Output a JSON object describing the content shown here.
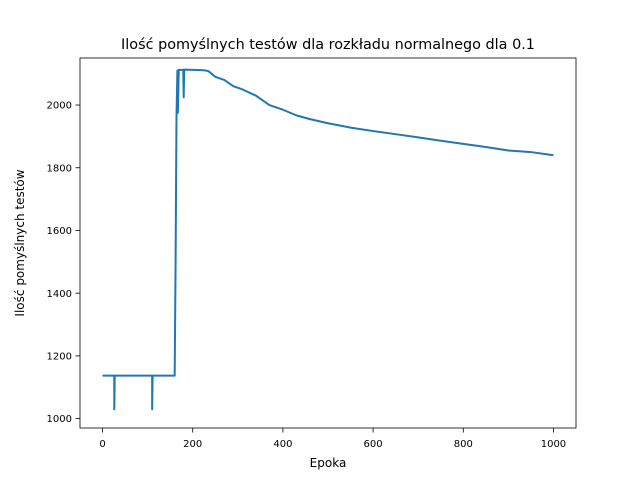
{
  "chart_data": {
    "type": "line",
    "title": "Ilość pomyślnych testów dla rozkładu normalnego dla 0.1",
    "xlabel": "Epoka",
    "ylabel": "Ilość pomyślnych testów",
    "xlim": [
      -50,
      1050
    ],
    "ylim": [
      970,
      2150
    ],
    "x_ticks": [
      0,
      200,
      400,
      600,
      800,
      1000
    ],
    "x_tick_labels": [
      "0",
      "200",
      "400",
      "600",
      "800",
      "1000"
    ],
    "y_ticks": [
      1000,
      1200,
      1400,
      1600,
      1800,
      2000
    ],
    "y_tick_labels": [
      "1000",
      "1200",
      "1400",
      "1600",
      "1800",
      "2000"
    ],
    "grid": false,
    "legend": false,
    "series": [
      {
        "color": "#1f77b4",
        "points": [
          [
            0,
            1137
          ],
          [
            26,
            1137
          ],
          [
            26,
            1030
          ],
          [
            27,
            1137
          ],
          [
            110,
            1137
          ],
          [
            110,
            1030
          ],
          [
            111,
            1137
          ],
          [
            160,
            1137
          ],
          [
            162,
            1500
          ],
          [
            164,
            1960
          ],
          [
            166,
            2110
          ],
          [
            167,
            1975
          ],
          [
            169,
            2112
          ],
          [
            179,
            2112
          ],
          [
            180,
            2025
          ],
          [
            181,
            2113
          ],
          [
            200,
            2112
          ],
          [
            225,
            2111
          ],
          [
            235,
            2108
          ],
          [
            250,
            2090
          ],
          [
            270,
            2080
          ],
          [
            290,
            2060
          ],
          [
            310,
            2050
          ],
          [
            340,
            2030
          ],
          [
            370,
            2000
          ],
          [
            400,
            1985
          ],
          [
            430,
            1967
          ],
          [
            460,
            1955
          ],
          [
            500,
            1942
          ],
          [
            550,
            1928
          ],
          [
            600,
            1917
          ],
          [
            650,
            1907
          ],
          [
            700,
            1897
          ],
          [
            750,
            1886
          ],
          [
            800,
            1876
          ],
          [
            850,
            1866
          ],
          [
            900,
            1855
          ],
          [
            950,
            1850
          ],
          [
            1000,
            1840
          ]
        ]
      }
    ]
  }
}
